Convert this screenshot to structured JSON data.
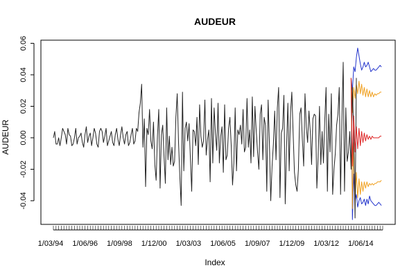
{
  "chart_data": {
    "type": "line",
    "title": "AUDEUR",
    "xlabel": "Index",
    "ylabel": "AUDEUR",
    "ylim": [
      -0.055,
      0.062
    ],
    "yticks": [
      -0.04,
      -0.02,
      0.0,
      0.02,
      0.04,
      0.06
    ],
    "ytick_labels": [
      "-0.04",
      "-0.02",
      "0.00",
      "0.02",
      "0.04",
      "0.06"
    ],
    "x_tick_labels": [
      "1/03/94",
      "1/06/96",
      "1/09/98",
      "1/12/00",
      "1/03/03",
      "1/06/05",
      "1/09/07",
      "1/12/09",
      "1/03/12",
      "1/06/14"
    ],
    "n_observations": 251,
    "forecast_start": 227,
    "colors": {
      "history": "#222222",
      "forecast": "#dd2222",
      "band_inner": "#f0a020",
      "band_outer": "#2233cc"
    },
    "series": [
      {
        "values": [
          0.0,
          0.004,
          -0.004,
          -0.004,
          0.0,
          -0.005,
          0.0,
          0.006,
          0.004,
          0.002,
          -0.004,
          0.006,
          0.002,
          0.001,
          -0.005,
          -0.004,
          0.0,
          0.006,
          -0.004,
          0.0,
          0.001,
          0.003,
          -0.003,
          -0.006,
          0.002,
          0.007,
          -0.003,
          0.001,
          0.003,
          -0.005,
          0.0,
          0.006,
          0.003,
          -0.004,
          -0.006,
          0.004,
          0.006,
          0.004,
          -0.003,
          0.001,
          0.006,
          -0.005,
          -0.002,
          0.001,
          0.004,
          -0.003,
          -0.005,
          0.002,
          0.006,
          -0.001,
          -0.005,
          0.002,
          0.007,
          0.0,
          -0.004,
          0.002,
          0.004,
          -0.005,
          -0.003,
          0.002,
          0.006,
          -0.004,
          -0.002,
          0.006,
          0.004,
          0.016,
          0.022,
          0.034,
          -0.006,
          0.012,
          -0.031,
          0.006,
          0.002,
          0.018,
          -0.002,
          -0.007,
          0.01,
          -0.017,
          -0.027,
          0.001,
          0.018,
          -0.032,
          0.002,
          0.008,
          -0.012,
          -0.029,
          0.019,
          -0.014,
          0.001,
          -0.017,
          -0.006,
          -0.018,
          -0.015,
          0.013,
          0.028,
          -0.003,
          -0.025,
          -0.043,
          0.029,
          -0.021,
          0.006,
          0.01,
          -0.002,
          0.009,
          -0.013,
          -0.034,
          0.005,
          0.004,
          -0.005,
          0.013,
          -0.017,
          0.021,
          0.001,
          -0.006,
          -0.002,
          0.024,
          -0.011,
          -0.001,
          0.005,
          -0.028,
          0.025,
          -0.016,
          0.019,
          0.003,
          -0.008,
          0.022,
          -0.016,
          0.001,
          0.007,
          -0.022,
          0.021,
          -0.014,
          -0.011,
          0.006,
          0.013,
          -0.005,
          -0.03,
          -0.016,
          0.019,
          -0.021,
          0.005,
          0.002,
          0.008,
          -0.004,
          0.018,
          -0.009,
          -0.006,
          0.025,
          -0.006,
          0.005,
          -0.016,
          0.026,
          -0.012,
          0.02,
          0.004,
          -0.009,
          -0.02,
          0.015,
          0.021,
          -0.014,
          0.013,
          0.008,
          -0.034,
          0.024,
          -0.004,
          -0.04,
          -0.018,
          -0.004,
          0.017,
          -0.014,
          0.019,
          0.032,
          -0.038,
          0.003,
          0.006,
          0.027,
          -0.042,
          -0.006,
          0.022,
          -0.021,
          0.016,
          0.029,
          0.003,
          -0.022,
          -0.03,
          -0.034,
          -0.02,
          0.015,
          0.019,
          -0.001,
          -0.018,
          0.028,
          0.007,
          -0.003,
          0.017,
          0.004,
          -0.017,
          0.012,
          0.015,
          0.014,
          -0.032,
          -0.012,
          0.02,
          -0.017,
          0.004,
          -0.016,
          0.011,
          0.032,
          -0.034,
          0.015,
          -0.009,
          0.028,
          -0.036,
          -0.02,
          -0.01,
          0.008,
          0.015,
          0.032,
          -0.036,
          0.011,
          0.048,
          -0.034,
          0.019,
          -0.015,
          -0.009,
          0.004,
          -0.02,
          0.032,
          0.001,
          -0.051,
          0.038
        ]
      },
      {
        "values": [
          0.038,
          -0.018,
          0.014,
          -0.009,
          0.007,
          -0.007,
          0.006,
          -0.005,
          0.004,
          -0.003,
          0.003,
          -0.002,
          0.002,
          -0.001,
          0.001,
          -0.001,
          0.001,
          0.0,
          0.0,
          0.0,
          0.0,
          0.0,
          0.001,
          0.001
        ]
      },
      {
        "values": [
          0.038,
          0.016,
          0.032,
          0.025,
          0.034,
          0.028,
          0.036,
          0.028,
          0.034,
          0.027,
          0.032,
          0.026,
          0.031,
          0.026,
          0.03,
          0.026,
          0.029,
          0.026,
          0.028,
          0.027,
          0.028,
          0.028,
          0.029,
          0.029
        ]
      },
      {
        "values": [
          0.038,
          -0.045,
          -0.003,
          -0.038,
          -0.022,
          -0.038,
          -0.026,
          -0.036,
          -0.028,
          -0.034,
          -0.028,
          -0.032,
          -0.028,
          -0.031,
          -0.029,
          -0.03,
          -0.029,
          -0.03,
          -0.029,
          -0.029,
          -0.028,
          -0.028,
          -0.028,
          -0.027
        ]
      },
      {
        "values": [
          0.038,
          0.03,
          0.045,
          0.042,
          0.051,
          0.057,
          0.052,
          0.047,
          0.043,
          0.045,
          0.048,
          0.045,
          0.046,
          0.048,
          0.045,
          0.042,
          0.043,
          0.044,
          0.043,
          0.043,
          0.044,
          0.045,
          0.046,
          0.045
        ]
      },
      {
        "values": [
          0.038,
          -0.052,
          -0.023,
          -0.04,
          -0.036,
          -0.044,
          -0.04,
          -0.038,
          -0.042,
          -0.041,
          -0.039,
          -0.043,
          -0.039,
          -0.042,
          -0.037,
          -0.04,
          -0.041,
          -0.042,
          -0.043,
          -0.043,
          -0.042,
          -0.041,
          -0.042,
          -0.043
        ]
      }
    ],
    "grid": false,
    "legend": "none"
  }
}
